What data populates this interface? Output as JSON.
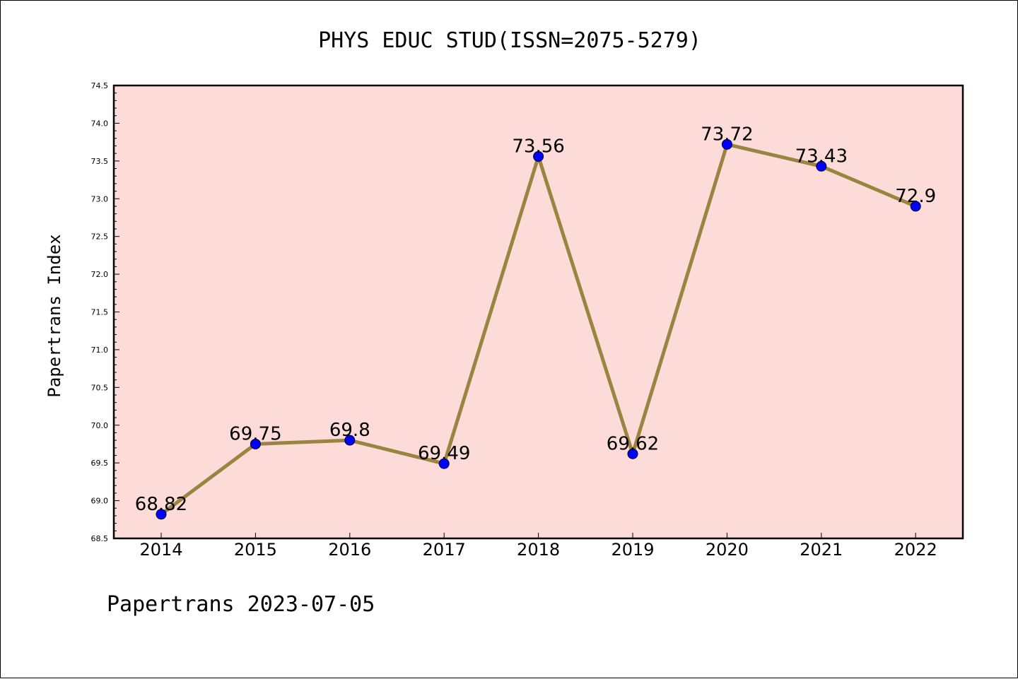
{
  "chart_data": {
    "type": "line",
    "title": "PHYS EDUC STUD(ISSN=2075-5279)",
    "ylabel": "Papertrans Index",
    "xlabel": "",
    "footer": "Papertrans 2023-07-05",
    "categories": [
      "2014",
      "2015",
      "2016",
      "2017",
      "2018",
      "2019",
      "2020",
      "2021",
      "2022"
    ],
    "values": [
      68.82,
      69.75,
      69.8,
      69.49,
      73.56,
      69.62,
      73.72,
      73.43,
      72.9
    ],
    "data_labels": [
      "68.82",
      "69.75",
      "69.8",
      "69.49",
      "73.56",
      "69.62",
      "73.72",
      "73.43",
      "72.9"
    ],
    "ylim": [
      68.5,
      74.5
    ],
    "yticks": [
      "68.5",
      "69.0",
      "69.5",
      "70.0",
      "70.5",
      "71.0",
      "71.5",
      "72.0",
      "72.5",
      "73.0",
      "73.5",
      "74.0",
      "74.5"
    ],
    "grid": false,
    "colors": {
      "plot_background": "#fddbd8",
      "line": "#9b8340",
      "marker": "#0000ff"
    }
  }
}
